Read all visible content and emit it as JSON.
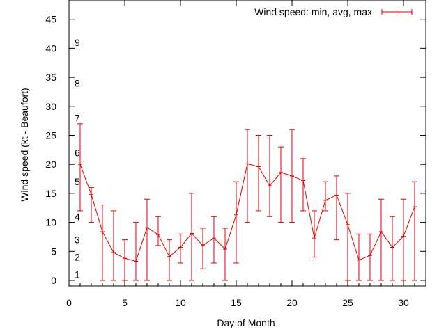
{
  "chart_data": {
    "type": "line",
    "title": "",
    "xlabel": "Day of Month",
    "ylabel": "Wind speed (kt - Beaufort)",
    "xlim": [
      0,
      32
    ],
    "ylim": [
      0,
      48
    ],
    "x_ticks": [
      "0",
      "5",
      "10",
      "15",
      "20",
      "25",
      "30"
    ],
    "y_ticks": [
      "0",
      "5",
      "10",
      "15",
      "20",
      "25",
      "30",
      "35",
      "40",
      "45"
    ],
    "grid": false,
    "legend_position": "top-right",
    "series_color": "#e00000",
    "beaufort_labels": [
      {
        "label": "1",
        "y": 1
      },
      {
        "label": "2",
        "y": 4
      },
      {
        "label": "3",
        "y": 7
      },
      {
        "label": "4",
        "y": 11
      },
      {
        "label": "5",
        "y": 17
      },
      {
        "label": "6",
        "y": 22
      },
      {
        "label": "7",
        "y": 28
      },
      {
        "label": "8",
        "y": 34
      },
      {
        "label": "9",
        "y": 41
      }
    ],
    "series": [
      {
        "name": "Wind speed: min, avg, max",
        "x": [
          1,
          2,
          3,
          4,
          5,
          6,
          7,
          8,
          9,
          10,
          11,
          12,
          13,
          14,
          15,
          16,
          17,
          18,
          19,
          20,
          21,
          22,
          23,
          24,
          25,
          26,
          27,
          28,
          29,
          30,
          31
        ],
        "avg": [
          20,
          14.8,
          8.4,
          4.8,
          3.8,
          3.3,
          9.1,
          7.9,
          4.1,
          5.7,
          8.1,
          6,
          7.3,
          5.4,
          11.3,
          20.1,
          19.6,
          16.3,
          18.6,
          18,
          17.2,
          7.3,
          13.8,
          14.7,
          9.6,
          3.5,
          4.3,
          8.4,
          5.7,
          7.6,
          12.7
        ],
        "min": [
          12,
          10,
          0,
          0,
          0,
          0,
          0,
          6,
          0,
          3,
          0,
          2,
          3,
          0,
          3,
          10,
          12,
          11,
          10,
          10,
          12,
          4,
          12,
          7,
          0,
          0,
          0,
          0,
          0,
          0,
          0
        ],
        "max": [
          27,
          16,
          13,
          12,
          7,
          10,
          14,
          11,
          7,
          8,
          15,
          9,
          11,
          9,
          17,
          26,
          25,
          25,
          23,
          26,
          21,
          12,
          17,
          18,
          15,
          8,
          8,
          14,
          11,
          14,
          17
        ]
      }
    ]
  }
}
